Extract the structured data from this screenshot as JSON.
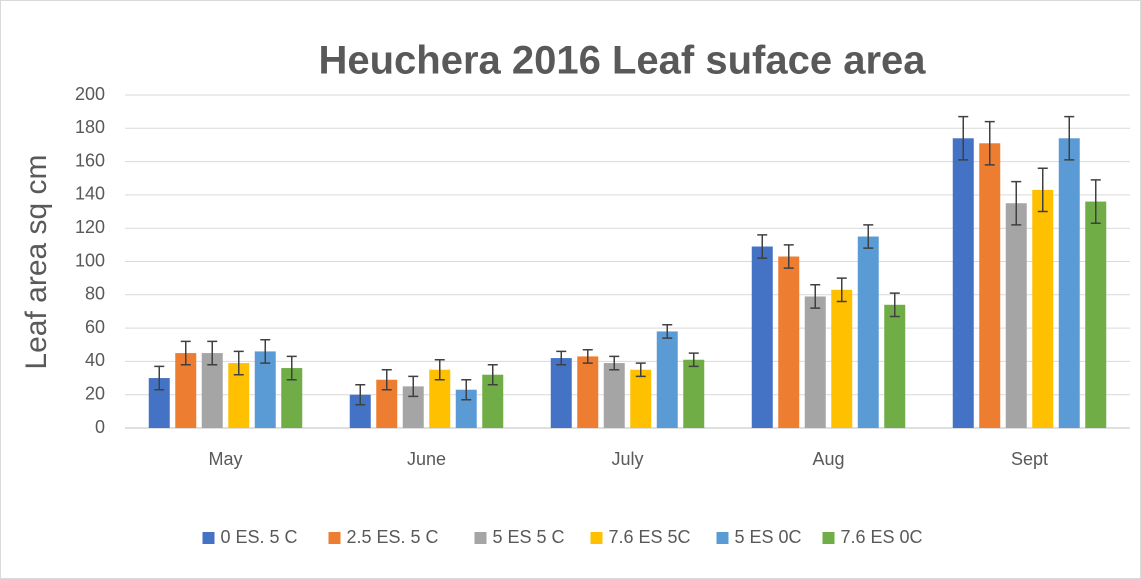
{
  "chart_data": {
    "type": "bar",
    "title": "Heuchera 2016 Leaf suface area",
    "y_label": "Leaf area sq  cm",
    "categories": [
      "May",
      "June",
      "July",
      "Aug",
      "Sept"
    ],
    "series": [
      {
        "name": "0 ES. 5 C",
        "color": "#4472c4",
        "values": [
          30,
          20,
          42,
          109,
          174
        ],
        "errors": [
          7,
          6,
          4,
          7,
          13
        ]
      },
      {
        "name": "2.5 ES. 5 C",
        "color": "#ed7d31",
        "values": [
          45,
          29,
          43,
          103,
          171
        ],
        "errors": [
          7,
          6,
          4,
          7,
          13
        ]
      },
      {
        "name": "5 ES 5 C",
        "color": "#a5a5a5",
        "values": [
          45,
          25,
          39,
          79,
          135
        ],
        "errors": [
          7,
          6,
          4,
          7,
          13
        ]
      },
      {
        "name": "7.6 ES 5C",
        "color": "#ffc000",
        "values": [
          39,
          35,
          35,
          83,
          143
        ],
        "errors": [
          7,
          6,
          4,
          7,
          13
        ]
      },
      {
        "name": "5 ES 0C",
        "color": "#5b9bd5",
        "values": [
          46,
          23,
          58,
          115,
          174
        ],
        "errors": [
          7,
          6,
          4,
          7,
          13
        ]
      },
      {
        "name": "7.6 ES 0C",
        "color": "#70ad47",
        "values": [
          36,
          32,
          41,
          74,
          136
        ],
        "errors": [
          7,
          6,
          4,
          7,
          13
        ]
      }
    ],
    "ylim": [
      0,
      200
    ],
    "yticks": [
      0,
      20,
      40,
      60,
      80,
      100,
      120,
      140,
      160,
      180,
      200
    ],
    "grid": true,
    "legend": "bottom"
  }
}
